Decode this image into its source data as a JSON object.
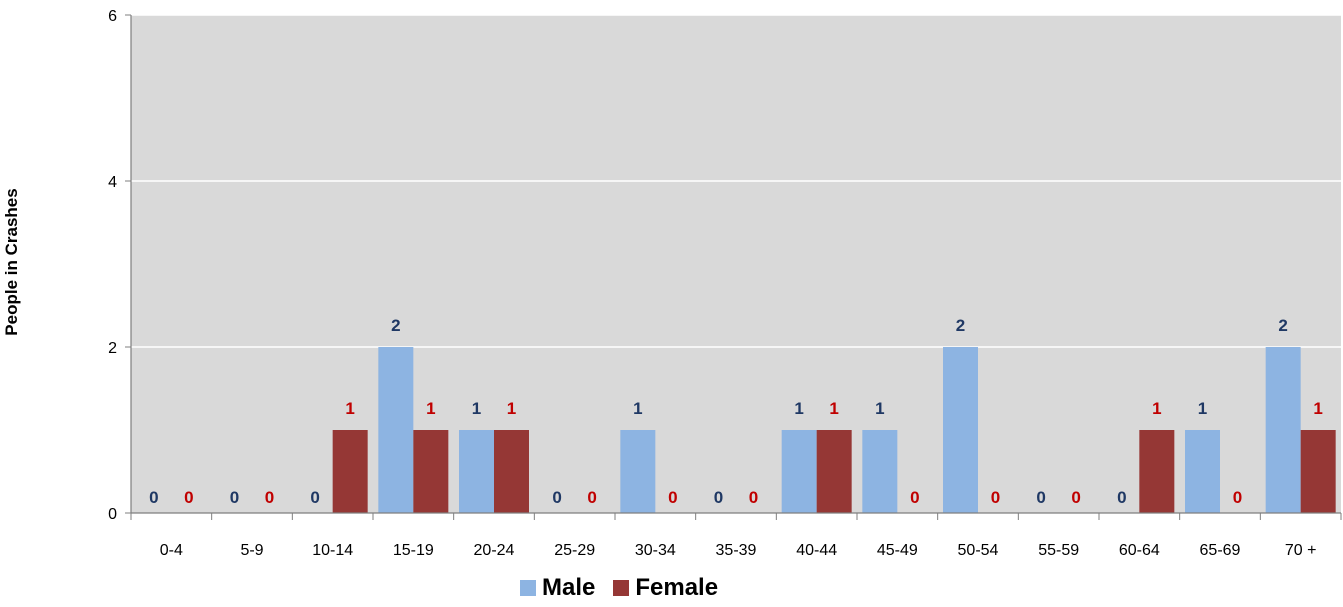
{
  "chart_data": {
    "type": "bar",
    "ylabel": "People in Crashes",
    "xlabel": "",
    "title": "",
    "ylim": [
      0,
      6
    ],
    "yticks": [
      0,
      2,
      4,
      6
    ],
    "grid": true,
    "legend_position": "bottom",
    "categories": [
      "0-4",
      "5-9",
      "10-14",
      "15-19",
      "20-24",
      "25-29",
      "30-34",
      "35-39",
      "40-44",
      "45-49",
      "50-54",
      "55-59",
      "60-64",
      "65-69",
      "70 +"
    ],
    "series": [
      {
        "name": "Male",
        "color": "#8db4e2",
        "label_color": "#1f3864",
        "values": [
          0,
          0,
          0,
          2,
          1,
          0,
          1,
          0,
          1,
          1,
          2,
          0,
          0,
          1,
          2
        ]
      },
      {
        "name": "Female",
        "color": "#953735",
        "label_color": "#c00000",
        "values": [
          0,
          0,
          1,
          1,
          1,
          0,
          0,
          0,
          1,
          0,
          0,
          0,
          1,
          0,
          1
        ]
      }
    ],
    "plot_background": "#d9d9d9"
  }
}
